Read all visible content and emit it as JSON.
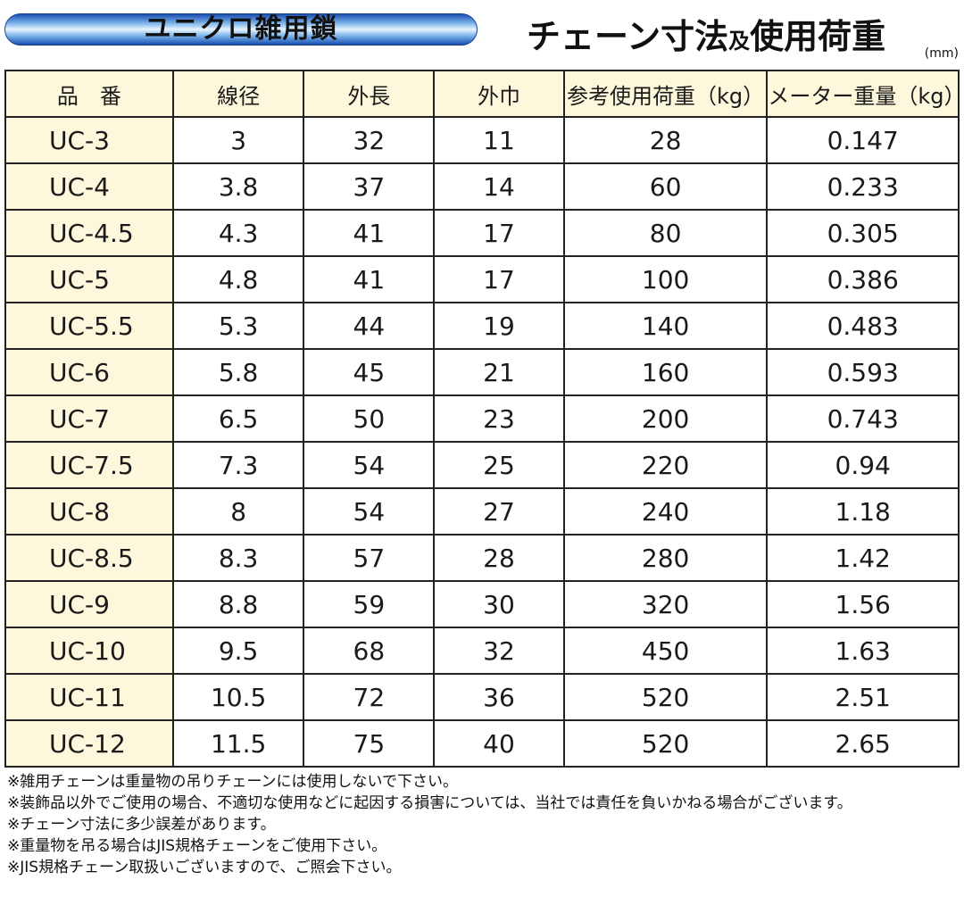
{
  "header": {
    "badge": "ユニクロ雑用鎖",
    "title_main": "チェーン寸法",
    "title_conj": "及",
    "title_sub": "使用荷重",
    "unit": "(mm)"
  },
  "table": {
    "columns": [
      "品　番",
      "線径",
      "外長",
      "外巾",
      "参考使用荷重（kg）",
      "メーター重量（kg）"
    ],
    "rows": [
      [
        "UC-3",
        "3",
        "32",
        "11",
        "28",
        "0.147"
      ],
      [
        "UC-4",
        "3.8",
        "37",
        "14",
        "60",
        "0.233"
      ],
      [
        "UC-4.5",
        "4.3",
        "41",
        "17",
        "80",
        "0.305"
      ],
      [
        "UC-5",
        "4.8",
        "41",
        "17",
        "100",
        "0.386"
      ],
      [
        "UC-5.5",
        "5.3",
        "44",
        "19",
        "140",
        "0.483"
      ],
      [
        "UC-6",
        "5.8",
        "45",
        "21",
        "160",
        "0.593"
      ],
      [
        "UC-7",
        "6.5",
        "50",
        "23",
        "200",
        "0.743"
      ],
      [
        "UC-7.5",
        "7.3",
        "54",
        "25",
        "220",
        "0.94"
      ],
      [
        "UC-8",
        "8",
        "54",
        "27",
        "240",
        "1.18"
      ],
      [
        "UC-8.5",
        "8.3",
        "57",
        "28",
        "280",
        "1.42"
      ],
      [
        "UC-9",
        "8.8",
        "59",
        "30",
        "320",
        "1.56"
      ],
      [
        "UC-10",
        "9.5",
        "68",
        "32",
        "450",
        "1.63"
      ],
      [
        "UC-11",
        "10.5",
        "72",
        "36",
        "520",
        "2.51"
      ],
      [
        "UC-12",
        "11.5",
        "75",
        "40",
        "520",
        "2.65"
      ]
    ]
  },
  "notes": [
    "※雑用チェーンは重量物の吊りチェーンには使用しないで下さい。",
    "※装飾品以外でご使用の場合、不適切な使用などに起因する損害については、当社では責任を負いかねる場合がございます。",
    "※チェーン寸法に多少誤差があります。",
    "※重量物を吊る場合はJIS規格チェーンをご使用下さい。",
    "※JIS規格チェーン取扱いございますので、ご照会下さい。"
  ]
}
